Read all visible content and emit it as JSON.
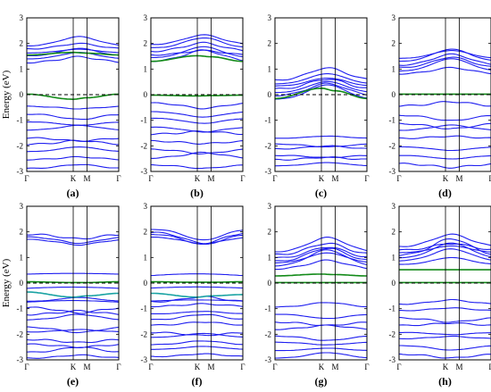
{
  "chart_data": {
    "type": "line",
    "y_axis_label": "Energy (eV)",
    "ylim": [
      -3,
      3
    ],
    "y_ticks": [
      "3",
      "2",
      "1",
      "0",
      "-1",
      "-2",
      "-3"
    ],
    "k_path_labels": [
      "Γ",
      "K",
      "M",
      "Γ"
    ],
    "k_path_positions": [
      0,
      0.505,
      0.655,
      1
    ],
    "fermi_level_eV": 0,
    "colors": {
      "bands": "#1e1ef0",
      "highlight": "#128a18",
      "highlight_alt": "#1aa3a3",
      "frame": "#000000",
      "fermi": "#000000"
    },
    "panels": [
      {
        "label": "(a)",
        "blue_bands": [
          {
            "count": 6,
            "start": 1.9,
            "spacing": 0.13,
            "dispersion": 0.25,
            "spread": 0.04,
            "shape": "hill"
          },
          {
            "count": 9,
            "start": -0.45,
            "spacing": 0.3,
            "dispersion": 0.15,
            "spread": 0.08,
            "shape": "mixed"
          }
        ],
        "green_bands": [
          {
            "values": [
              1.55,
              1.65,
              1.62,
              1.55
            ],
            "style": "solid"
          },
          {
            "values": [
              0.02,
              -0.18,
              -0.12,
              0.02
            ],
            "style": "solid"
          }
        ]
      },
      {
        "label": "(b)",
        "blue_bands": [
          {
            "count": 6,
            "start": 1.95,
            "spacing": 0.13,
            "dispersion": 0.3,
            "spread": 0.04,
            "shape": "hill"
          },
          {
            "count": 9,
            "start": -0.35,
            "spacing": 0.3,
            "dispersion": 0.15,
            "spread": 0.08,
            "shape": "mixed"
          }
        ],
        "green_bands": [
          {
            "values": [
              1.3,
              1.52,
              1.48,
              1.3
            ],
            "style": "solid"
          },
          {
            "values": [
              -0.02,
              -0.05,
              -0.04,
              -0.02
            ],
            "style": "solid"
          }
        ]
      },
      {
        "label": "(c)",
        "blue_bands": [
          {
            "count": 7,
            "start": 0.55,
            "spacing": 0.12,
            "dispersion": 0.45,
            "spread": 0.05,
            "shape": "hill"
          },
          {
            "count": 6,
            "start": -1.7,
            "spacing": 0.22,
            "dispersion": 0.12,
            "spread": 0.08,
            "shape": "mixed"
          }
        ],
        "green_bands": [
          {
            "values": [
              -0.15,
              0.25,
              0.15,
              -0.15
            ],
            "style": "solid"
          }
        ]
      },
      {
        "label": "(d)",
        "blue_bands": [
          {
            "count": 6,
            "start": 1.4,
            "spacing": 0.12,
            "dispersion": 0.35,
            "spread": 0.05,
            "shape": "hill"
          },
          {
            "count": 8,
            "start": -0.45,
            "spacing": 0.32,
            "dispersion": 0.15,
            "spread": 0.08,
            "shape": "mixed"
          }
        ],
        "green_bands": [
          {
            "values": [
              0.02,
              0.02,
              0.02,
              0.02
            ],
            "style": "solid"
          }
        ]
      },
      {
        "label": "(e)",
        "blue_bands": [
          {
            "count": 3,
            "start": 1.9,
            "spacing": 0.1,
            "dispersion": -0.25,
            "spread": 0.03,
            "shape": "valley"
          },
          {
            "count": 3,
            "start": 0.35,
            "spacing": 0.55,
            "dispersion": 0.05,
            "spread": 0.02,
            "shape": "flat"
          },
          {
            "count": 10,
            "start": -0.75,
            "spacing": 0.24,
            "dispersion": 0.15,
            "spread": 0.08,
            "shape": "mixed"
          }
        ],
        "green_bands": [
          {
            "values": [
              0.05,
              0.02,
              0.02,
              0.05
            ],
            "style": "solid"
          },
          {
            "values": [
              -0.35,
              -0.55,
              -0.5,
              -0.4
            ],
            "style": "solid"
          }
        ]
      },
      {
        "label": "(f)",
        "blue_bands": [
          {
            "count": 4,
            "start": 2.1,
            "spacing": 0.1,
            "dispersion": -0.3,
            "spread": 0.03,
            "shape": "valley"
          },
          {
            "count": 3,
            "start": 0.3,
            "spacing": 0.5,
            "dispersion": 0.05,
            "spread": 0.02,
            "shape": "flat"
          },
          {
            "count": 10,
            "start": -0.7,
            "spacing": 0.24,
            "dispersion": 0.15,
            "spread": 0.08,
            "shape": "mixed"
          }
        ],
        "green_bands": [
          {
            "values": [
              0.05,
              0.03,
              0.03,
              0.05
            ],
            "style": "solid"
          },
          {
            "values": [
              -0.4,
              -0.55,
              -0.5,
              -0.45
            ],
            "style": "solid"
          }
        ]
      },
      {
        "label": "(g)",
        "blue_bands": [
          {
            "count": 7,
            "start": 1.2,
            "spacing": 0.11,
            "dispersion": 0.45,
            "spread": 0.05,
            "shape": "hill"
          },
          {
            "count": 8,
            "start": -0.95,
            "spacing": 0.28,
            "dispersion": 0.15,
            "spread": 0.08,
            "shape": "mixed"
          }
        ],
        "green_bands": [
          {
            "values": [
              0.28,
              0.35,
              0.33,
              0.28
            ],
            "style": "solid"
          },
          {
            "values": [
              0.02,
              0.02,
              0.02,
              0.02
            ],
            "style": "solid"
          }
        ]
      },
      {
        "label": "(h)",
        "blue_bands": [
          {
            "count": 7,
            "start": 1.4,
            "spacing": 0.11,
            "dispersion": 0.45,
            "spread": 0.05,
            "shape": "hill"
          },
          {
            "count": 8,
            "start": -0.8,
            "spacing": 0.28,
            "dispersion": 0.15,
            "spread": 0.08,
            "shape": "mixed"
          }
        ],
        "green_bands": [
          {
            "values": [
              0.52,
              0.52,
              0.52,
              0.52
            ],
            "style": "solid"
          },
          {
            "values": [
              0.02,
              0.02,
              0.02,
              0.02
            ],
            "style": "solid"
          }
        ]
      }
    ]
  }
}
